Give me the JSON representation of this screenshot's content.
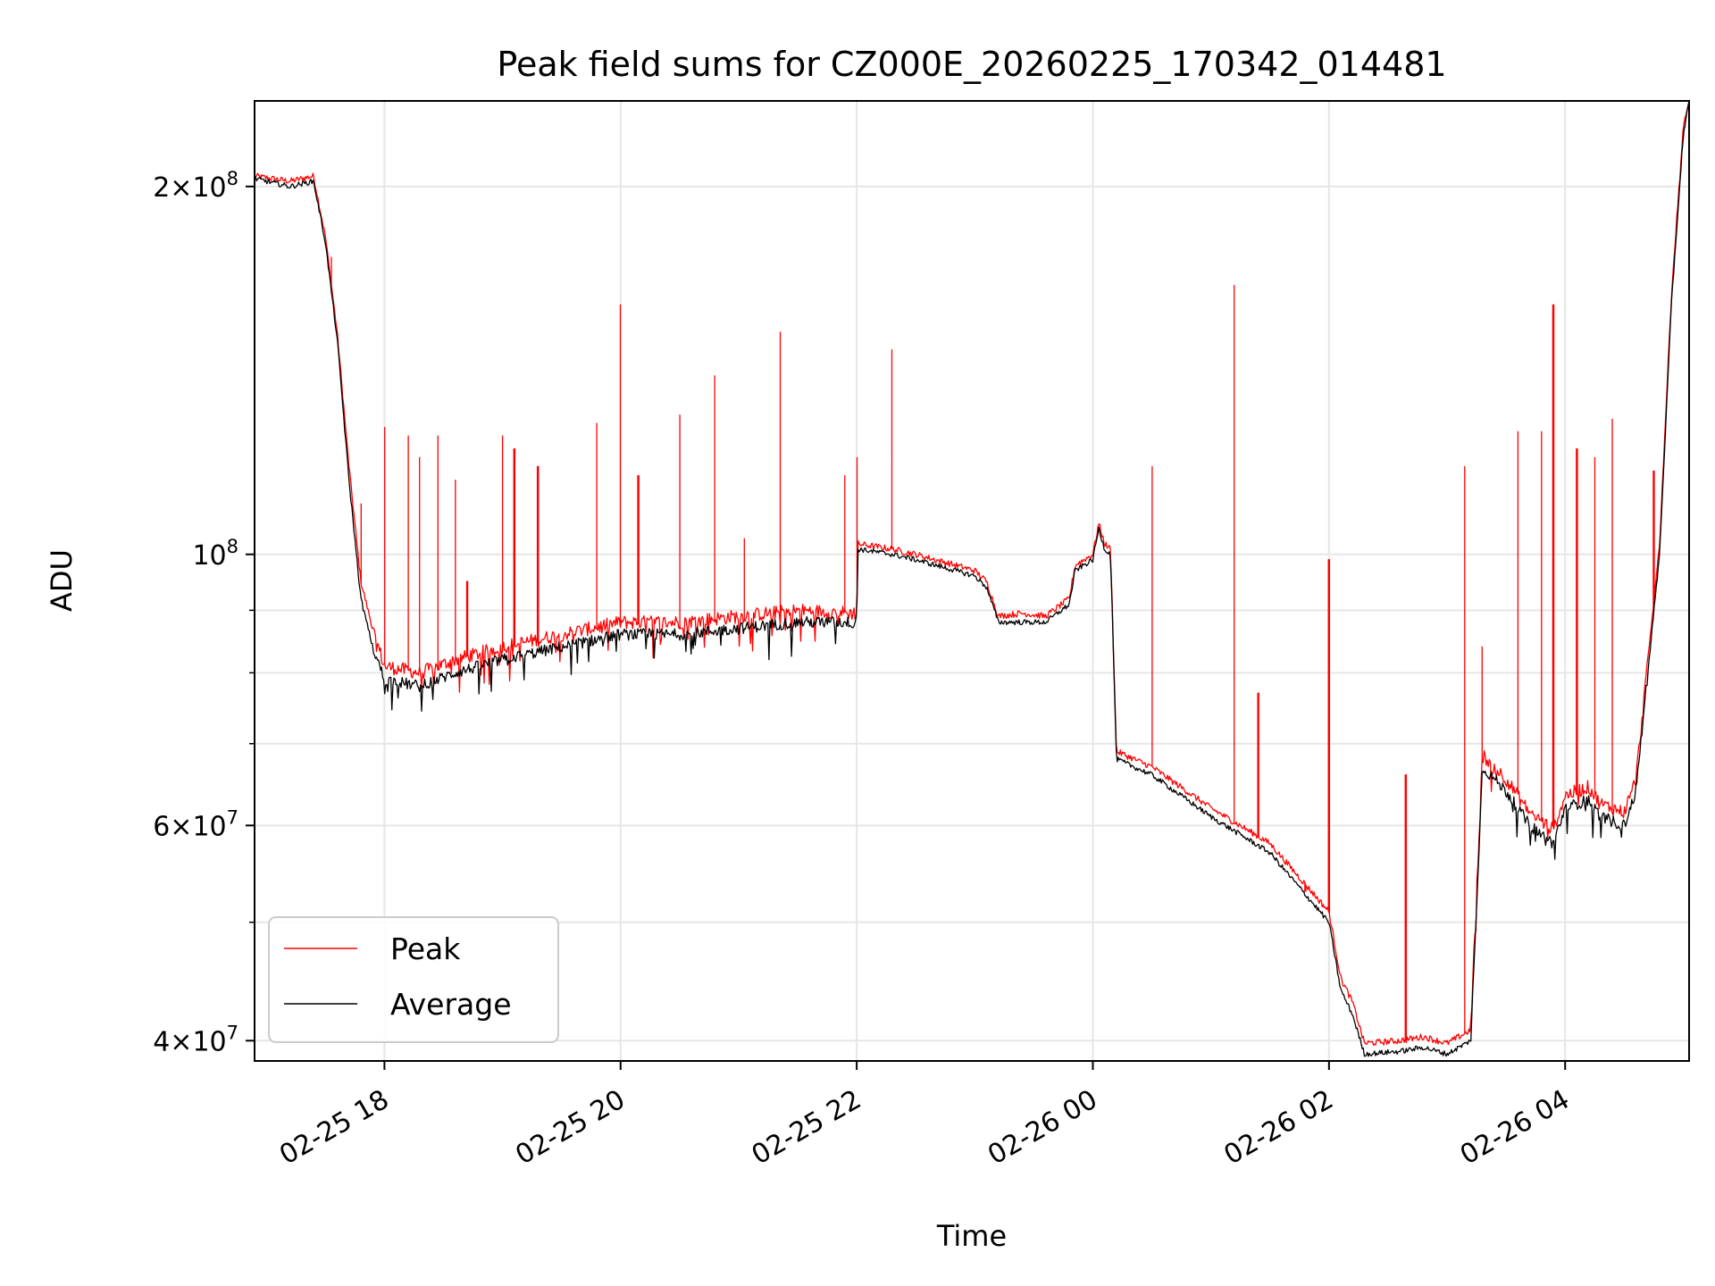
{
  "chart_data": {
    "type": "line",
    "title": "Peak field sums for CZ000E_20260225_170342_014481",
    "xlabel": "Time",
    "ylabel": "ADU",
    "yscale": "log",
    "ylim": [
      38500000,
      235000000
    ],
    "xlim_hours": [
      -1.1,
      11.05
    ],
    "grid": true,
    "legend_position": "lower-left",
    "x_ticks": [
      {
        "hours": 0,
        "label": "02-25 18"
      },
      {
        "hours": 2,
        "label": "02-25 20"
      },
      {
        "hours": 4,
        "label": "02-25 22"
      },
      {
        "hours": 6,
        "label": "02-26 00"
      },
      {
        "hours": 8,
        "label": "02-26 02"
      },
      {
        "hours": 10,
        "label": "02-26 04"
      }
    ],
    "y_major_ticks": [
      {
        "value": 40000000,
        "mantissa": "4",
        "exp": "7"
      },
      {
        "value": 60000000,
        "mantissa": "6",
        "exp": "7"
      },
      {
        "value": 100000000,
        "mantissa": "",
        "exp": "8"
      },
      {
        "value": 200000000,
        "mantissa": "2",
        "exp": "8"
      }
    ],
    "y_minor_grid": [
      50000000,
      70000000,
      80000000,
      90000000
    ],
    "series": [
      {
        "name": "Average",
        "color": "#000000",
        "points": [
          [
            -1.1,
            203000000
          ],
          [
            -0.8,
            200000000
          ],
          [
            -0.6,
            202000000
          ],
          [
            -0.5,
            180000000
          ],
          [
            -0.4,
            150000000
          ],
          [
            -0.3,
            115000000
          ],
          [
            -0.2,
            92000000
          ],
          [
            -0.1,
            84000000
          ],
          [
            0.0,
            79000000
          ],
          [
            0.3,
            78000000
          ],
          [
            0.6,
            80000000
          ],
          [
            1.0,
            82000000
          ],
          [
            1.5,
            84000000
          ],
          [
            2.0,
            86000000
          ],
          [
            2.5,
            86000000
          ],
          [
            3.0,
            87000000
          ],
          [
            3.5,
            88000000
          ],
          [
            4.0,
            88000000
          ],
          [
            4.01,
            101000000
          ],
          [
            4.3,
            100000000
          ],
          [
            4.5,
            99000000
          ],
          [
            5.0,
            96000000
          ],
          [
            5.1,
            94000000
          ],
          [
            5.2,
            88000000
          ],
          [
            5.4,
            88000000
          ],
          [
            5.6,
            88000000
          ],
          [
            5.8,
            91000000
          ],
          [
            5.85,
            97000000
          ],
          [
            6.0,
            99000000
          ],
          [
            6.05,
            105000000
          ],
          [
            6.1,
            101000000
          ],
          [
            6.15,
            100000000
          ],
          [
            6.2,
            68000000
          ],
          [
            6.5,
            66000000
          ],
          [
            7.0,
            61000000
          ],
          [
            7.5,
            57000000
          ],
          [
            8.0,
            50000000
          ],
          [
            8.1,
            44000000
          ],
          [
            8.2,
            42000000
          ],
          [
            8.3,
            39000000
          ],
          [
            8.6,
            39200000
          ],
          [
            8.8,
            39500000
          ],
          [
            9.0,
            39000000
          ],
          [
            9.2,
            40000000
          ],
          [
            9.3,
            67000000
          ],
          [
            9.5,
            64000000
          ],
          [
            9.7,
            60000000
          ],
          [
            9.9,
            58000000
          ],
          [
            10.0,
            62000000
          ],
          [
            10.2,
            63000000
          ],
          [
            10.3,
            61000000
          ],
          [
            10.5,
            60000000
          ],
          [
            10.6,
            64000000
          ],
          [
            10.8,
            100000000
          ],
          [
            10.9,
            160000000
          ],
          [
            11.0,
            220000000
          ],
          [
            11.05,
            235000000
          ]
        ]
      },
      {
        "name": "Peak",
        "color": "#ff0000",
        "points": [
          [
            -1.1,
            204000000
          ],
          [
            -0.8,
            202000000
          ],
          [
            -0.6,
            204000000
          ],
          [
            -0.5,
            182000000
          ],
          [
            -0.4,
            152000000
          ],
          [
            -0.3,
            118000000
          ],
          [
            -0.2,
            95000000
          ],
          [
            -0.1,
            87000000
          ],
          [
            0.0,
            81000000
          ],
          [
            0.3,
            80000000
          ],
          [
            0.6,
            82000000
          ],
          [
            1.0,
            84000000
          ],
          [
            1.5,
            86000000
          ],
          [
            2.0,
            88000000
          ],
          [
            2.5,
            88000000
          ],
          [
            3.0,
            89000000
          ],
          [
            3.5,
            90000000
          ],
          [
            4.0,
            89500000
          ],
          [
            4.01,
            102000000
          ],
          [
            4.3,
            101000000
          ],
          [
            4.5,
            100000000
          ],
          [
            5.0,
            97000000
          ],
          [
            5.1,
            95000000
          ],
          [
            5.2,
            89000000
          ],
          [
            5.4,
            89500000
          ],
          [
            5.6,
            89000000
          ],
          [
            5.8,
            92000000
          ],
          [
            5.85,
            98000000
          ],
          [
            6.0,
            100000000
          ],
          [
            6.05,
            106000000
          ],
          [
            6.1,
            102000000
          ],
          [
            6.15,
            101000000
          ],
          [
            6.2,
            69000000
          ],
          [
            6.5,
            67000000
          ],
          [
            7.0,
            62000000
          ],
          [
            7.5,
            58000000
          ],
          [
            8.0,
            51000000
          ],
          [
            8.1,
            45000000
          ],
          [
            8.2,
            43000000
          ],
          [
            8.3,
            39800000
          ],
          [
            8.6,
            40000000
          ],
          [
            8.8,
            40300000
          ],
          [
            9.0,
            39800000
          ],
          [
            9.2,
            40800000
          ],
          [
            9.3,
            68500000
          ],
          [
            9.5,
            65500000
          ],
          [
            9.7,
            61500000
          ],
          [
            9.9,
            59500000
          ],
          [
            10.0,
            63500000
          ],
          [
            10.2,
            64500000
          ],
          [
            10.3,
            62500000
          ],
          [
            10.5,
            61500000
          ],
          [
            10.6,
            65500000
          ],
          [
            10.8,
            102000000
          ],
          [
            10.9,
            163000000
          ],
          [
            11.0,
            223000000
          ],
          [
            11.05,
            235000000
          ]
        ],
        "spikes": [
          [
            -0.45,
            175000000
          ],
          [
            -0.2,
            110000000
          ],
          [
            0.0,
            127000000
          ],
          [
            0.2,
            125000000
          ],
          [
            0.3,
            120000000
          ],
          [
            0.45,
            125000000
          ],
          [
            0.6,
            115000000
          ],
          [
            0.7,
            95000000
          ],
          [
            1.0,
            125000000
          ],
          [
            1.1,
            122000000
          ],
          [
            1.3,
            118000000
          ],
          [
            1.8,
            128000000
          ],
          [
            2.0,
            160000000
          ],
          [
            2.15,
            116000000
          ],
          [
            2.5,
            130000000
          ],
          [
            2.8,
            140000000
          ],
          [
            3.05,
            103000000
          ],
          [
            3.35,
            152000000
          ],
          [
            3.9,
            116000000
          ],
          [
            4.0,
            120000000
          ],
          [
            4.3,
            147000000
          ],
          [
            6.5,
            118000000
          ],
          [
            7.2,
            166000000
          ],
          [
            7.4,
            77000000
          ],
          [
            7.8,
            53000000
          ],
          [
            8.0,
            99000000
          ],
          [
            8.65,
            66000000
          ],
          [
            9.15,
            118000000
          ],
          [
            9.3,
            84000000
          ],
          [
            9.6,
            126000000
          ],
          [
            9.8,
            126000000
          ],
          [
            9.9,
            160000000
          ],
          [
            10.1,
            122000000
          ],
          [
            10.25,
            120000000
          ],
          [
            10.4,
            129000000
          ],
          [
            10.75,
            117000000
          ]
        ]
      }
    ]
  }
}
